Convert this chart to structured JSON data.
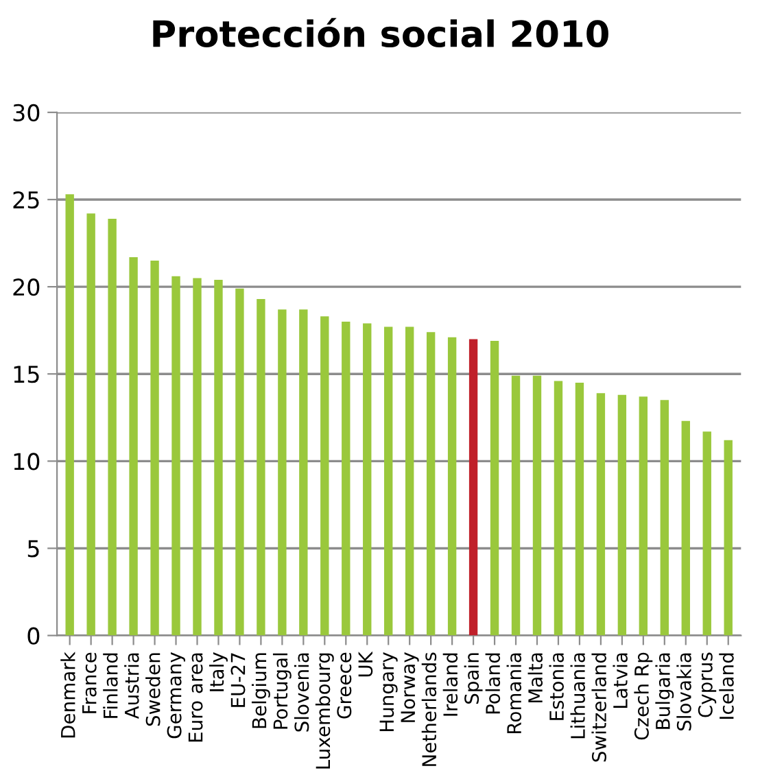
{
  "chart_data": {
    "type": "bar",
    "title": "Protección social 2010",
    "categories": [
      "Denmark",
      "France",
      "Finland",
      "Austria",
      "Sweden",
      "Germany",
      "Euro area",
      "Italy",
      "EU-27",
      "Belgium",
      "Portugal",
      "Slovenia",
      "Luxembourg",
      "Greece",
      "UK",
      "Hungary",
      "Norway",
      "Netherlands",
      "Ireland",
      "Spain",
      "Poland",
      "Romania",
      "Malta",
      "Estonia",
      "Lithuania",
      "Switzerland",
      "Latvia",
      "Czech Rp",
      "Bulgaria",
      "Slovakia",
      "Cyprus",
      "Iceland"
    ],
    "values": [
      25.3,
      24.2,
      23.9,
      21.7,
      21.5,
      20.6,
      20.5,
      20.4,
      19.9,
      19.3,
      18.7,
      18.7,
      18.3,
      18.0,
      17.9,
      17.7,
      17.7,
      17.4,
      17.1,
      17.0,
      16.9,
      14.9,
      14.9,
      14.6,
      14.5,
      13.9,
      13.8,
      13.7,
      13.5,
      12.3,
      11.7,
      11.2
    ],
    "colors": [
      "#9ac83c",
      "#9ac83c",
      "#9ac83c",
      "#9ac83c",
      "#9ac83c",
      "#9ac83c",
      "#9ac83c",
      "#9ac83c",
      "#9ac83c",
      "#9ac83c",
      "#9ac83c",
      "#9ac83c",
      "#9ac83c",
      "#9ac83c",
      "#9ac83c",
      "#9ac83c",
      "#9ac83c",
      "#9ac83c",
      "#9ac83c",
      "#c0202a",
      "#9ac83c",
      "#9ac83c",
      "#9ac83c",
      "#9ac83c",
      "#9ac83c",
      "#9ac83c",
      "#9ac83c",
      "#9ac83c",
      "#9ac83c",
      "#9ac83c",
      "#9ac83c",
      "#9ac83c"
    ],
    "ylim": [
      0,
      30
    ],
    "yticks": [
      0,
      5,
      10,
      15,
      20,
      25,
      30
    ],
    "grid": "y"
  }
}
